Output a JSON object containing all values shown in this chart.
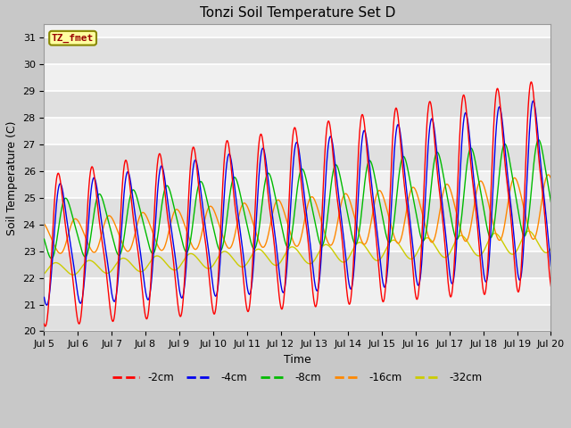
{
  "title": "Tonzi Soil Temperature Set D",
  "xlabel": "Time",
  "ylabel": "Soil Temperature (C)",
  "ylim": [
    20.0,
    31.5
  ],
  "yticks": [
    20.0,
    21.0,
    22.0,
    23.0,
    24.0,
    25.0,
    26.0,
    27.0,
    28.0,
    29.0,
    30.0,
    31.0
  ],
  "line_colors": [
    "#ff0000",
    "#0000ee",
    "#00bb00",
    "#ff8800",
    "#cccc00"
  ],
  "line_labels": [
    "-2cm",
    "-4cm",
    "-8cm",
    "-16cm",
    "-32cm"
  ],
  "legend_label": "TZ_fmet",
  "fig_facecolor": "#c8c8c8",
  "plot_bg_light": "#f0f0f0",
  "plot_bg_dark": "#e0e0e0",
  "grid_color": "#ffffff",
  "title_fontsize": 11,
  "axis_fontsize": 9,
  "tick_fontsize": 8,
  "n_days": 15,
  "n_per_day": 144
}
